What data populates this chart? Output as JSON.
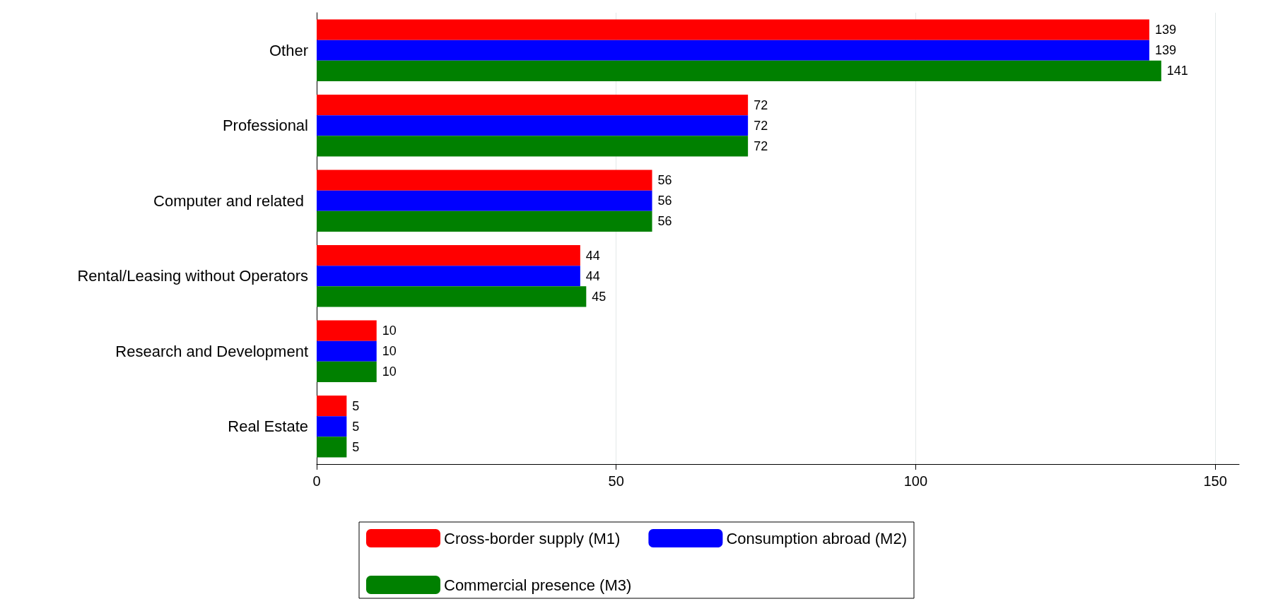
{
  "chart_data": {
    "type": "bar",
    "orientation": "horizontal",
    "categories": [
      "Other",
      "Professional",
      "Computer and related ",
      "Rental/Leasing without Operators",
      "Research and Development",
      "Real Estate"
    ],
    "series": [
      {
        "name": "Cross-border supply (M1)",
        "color": "#ff0000",
        "values": [
          139,
          72,
          56,
          44,
          10,
          5
        ]
      },
      {
        "name": "Consumption abroad (M2)",
        "color": "#0000ff",
        "values": [
          139,
          72,
          56,
          44,
          10,
          5
        ]
      },
      {
        "name": "Commercial presence (M3)",
        "color": "#008000",
        "values": [
          141,
          72,
          56,
          45,
          10,
          5
        ]
      }
    ],
    "xlim": [
      0,
      154
    ],
    "xticks": [
      0,
      50,
      100,
      150
    ],
    "grid": "x",
    "legend": "bottom",
    "data_labels": true
  }
}
